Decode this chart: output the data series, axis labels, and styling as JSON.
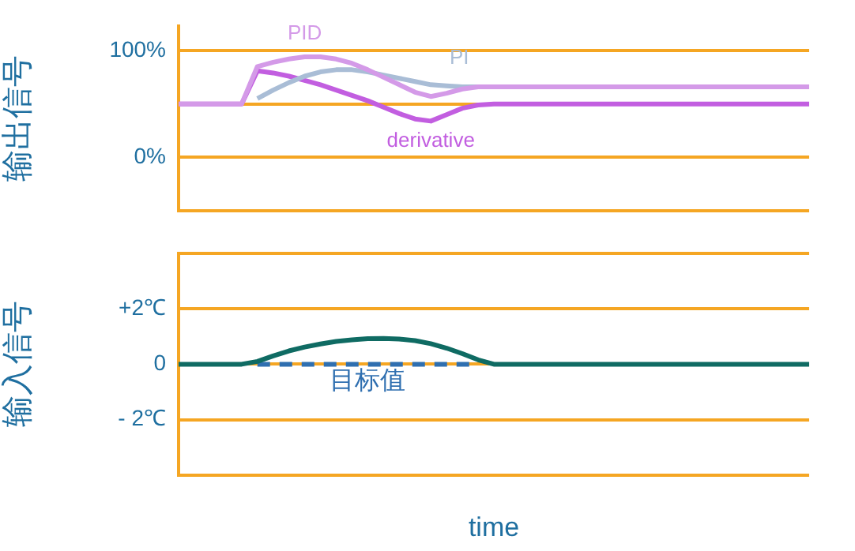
{
  "chart_data": [
    {
      "type": "line",
      "ylabel": "输出信号",
      "categories": [
        null,
        null,
        null,
        null,
        null,
        null,
        null,
        null,
        null,
        null,
        null,
        null,
        null,
        null,
        null,
        null,
        null,
        null,
        null,
        null,
        null,
        null,
        null,
        null,
        null,
        null,
        null,
        null,
        null,
        null,
        null,
        null,
        null,
        null,
        null,
        null,
        null,
        null,
        null,
        null,
        null
      ],
      "ylim": [
        -50,
        123
      ],
      "yticks": [
        {
          "value": -50,
          "label": null
        },
        {
          "value": 0,
          "label": "0%"
        },
        {
          "value": 50,
          "label": null
        },
        {
          "value": 100,
          "label": "100%"
        }
      ],
      "tick_labels": "y",
      "grid": "y",
      "legend": false,
      "marker": "none",
      "series": [
        {
          "name": "PID",
          "color": "#d49ae8",
          "values": [
            50,
            50,
            50,
            50,
            50,
            85,
            89,
            92,
            94,
            94,
            92,
            88,
            82,
            75,
            68,
            61,
            57,
            60,
            64,
            66,
            66,
            66,
            66,
            66,
            66,
            66,
            66,
            66,
            66,
            66,
            66,
            66,
            66,
            66,
            66,
            66,
            66,
            66,
            66,
            66,
            66
          ]
        },
        {
          "name": "PI",
          "color": "#a9bdd6",
          "values": [
            null,
            null,
            null,
            null,
            null,
            55,
            63,
            70,
            76,
            80,
            82,
            82,
            80,
            77,
            74,
            71,
            68,
            67,
            66,
            66,
            null,
            null,
            null,
            null,
            null,
            null,
            null,
            null,
            null,
            null,
            null,
            null,
            null,
            null,
            null,
            null,
            null,
            null,
            null,
            null,
            null
          ]
        },
        {
          "name": "derivative",
          "color": "#c25ee0",
          "values": [
            50,
            50,
            50,
            50,
            50,
            81,
            79,
            76,
            72,
            68,
            63,
            58,
            53,
            47,
            41,
            36,
            34,
            40,
            46,
            49,
            50,
            50,
            50,
            50,
            50,
            50,
            50,
            50,
            50,
            50,
            50,
            50,
            50,
            50,
            50,
            50,
            50,
            50,
            50,
            50,
            50
          ]
        }
      ]
    },
    {
      "type": "line",
      "ylabel": "输入信号",
      "xlabel": "time",
      "categories": [
        null,
        null,
        null,
        null,
        null,
        null,
        null,
        null,
        null,
        null,
        null,
        null,
        null,
        null,
        null,
        null,
        null,
        null,
        null,
        null,
        null,
        null,
        null,
        null,
        null,
        null,
        null,
        null,
        null,
        null,
        null,
        null,
        null,
        null,
        null,
        null,
        null,
        null,
        null,
        null,
        null
      ],
      "ylim": [
        -4,
        4
      ],
      "yticks": [
        {
          "value": -4,
          "label": null
        },
        {
          "value": -2,
          "label": "- 2℃"
        },
        {
          "value": 0,
          "label": "0"
        },
        {
          "value": 2,
          "label": "+2℃"
        },
        {
          "value": 4,
          "label": null
        }
      ],
      "tick_labels": "y",
      "grid": "y",
      "legend": false,
      "marker": "none",
      "series": [
        {
          "color": "#0f6b63",
          "values": [
            0,
            0,
            0,
            0,
            0,
            0.1,
            0.3,
            0.48,
            0.62,
            0.73,
            0.82,
            0.88,
            0.92,
            0.93,
            0.91,
            0.85,
            0.74,
            0.58,
            0.38,
            0.16,
            0,
            0,
            0,
            0,
            0,
            0,
            0,
            0,
            0,
            0,
            0,
            0,
            0,
            0,
            0,
            0,
            0,
            0,
            0,
            0,
            0
          ]
        },
        {
          "name": "目标值",
          "color": "#2f6fb0",
          "line_style": "dashed",
          "values": [
            null,
            null,
            null,
            null,
            null,
            0,
            0,
            0,
            0,
            0,
            0,
            0,
            0,
            0,
            0,
            0,
            0,
            0,
            0,
            0,
            null,
            null,
            null,
            null,
            null,
            null,
            null,
            null,
            null,
            null,
            null,
            null,
            null,
            null,
            null,
            null,
            null,
            null,
            null,
            null,
            null
          ]
        }
      ]
    }
  ]
}
